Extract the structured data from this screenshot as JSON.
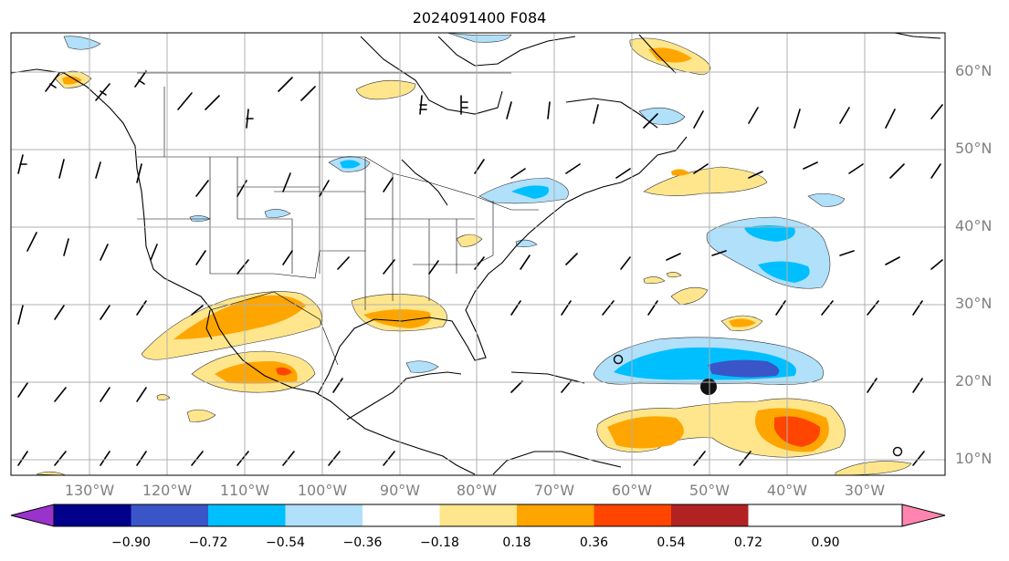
{
  "title": "2024091400 F084",
  "lat_labels": [
    "60°N",
    "50°N",
    "40°N",
    "30°N",
    "20°N",
    "10°N"
  ],
  "lon_labels": [
    "130°W",
    "120°W",
    "110°W",
    "100°W",
    "90°W",
    "80°W",
    "70°W",
    "60°W",
    "50°W",
    "40°W",
    "30°W"
  ],
  "colorbar": {
    "tick_labels": [
      "−0.90",
      "−0.72",
      "−0.54",
      "−0.36",
      "−0.18",
      "0.18",
      "0.36",
      "0.54",
      "0.72",
      "0.90"
    ],
    "colors": [
      "#9933cc",
      "#00008b",
      "#3a55c8",
      "#00bfff",
      "#b0e0fa",
      "#ffffff",
      "#ffe68c",
      "#ffa500",
      "#ff4500",
      "#b22222",
      "#ff85b0"
    ]
  },
  "colors": {
    "grid": "#b0b0b0",
    "coast": "#000000",
    "border": "#000000",
    "label": "#808080",
    "marker": "#111111"
  }
}
